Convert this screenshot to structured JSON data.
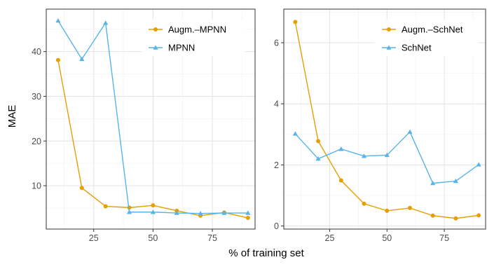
{
  "figure": {
    "ylabel": "MAE",
    "xlabel": "% of training set"
  },
  "chart_data": [
    {
      "type": "line",
      "panel": "left",
      "x": [
        10,
        20,
        30,
        40,
        50,
        60,
        70,
        80,
        90
      ],
      "xlim": [
        5,
        93
      ],
      "ylim": [
        0.3,
        49.5
      ],
      "x_ticks": [
        25,
        50,
        75
      ],
      "y_ticks": [
        10,
        20,
        30,
        40
      ],
      "grid": true,
      "legend_position": "top-right",
      "series": [
        {
          "name": "Augm.–MPNN",
          "color": "#E69F00",
          "marker": "circle",
          "values": [
            38.1,
            9.5,
            5.4,
            5.1,
            5.6,
            4.4,
            3.3,
            4.0,
            2.8
          ]
        },
        {
          "name": "MPNN",
          "color": "#56B4E9",
          "marker": "triangle",
          "values": [
            46.9,
            38.3,
            46.4,
            4.1,
            4.1,
            3.9,
            3.8,
            3.9,
            3.9
          ]
        }
      ]
    },
    {
      "type": "line",
      "panel": "right",
      "x": [
        10,
        20,
        30,
        40,
        50,
        60,
        70,
        80,
        90
      ],
      "xlim": [
        5,
        93
      ],
      "ylim": [
        -0.1,
        7.1
      ],
      "x_ticks": [
        25,
        50,
        75
      ],
      "y_ticks": [
        0,
        2,
        4,
        6
      ],
      "grid": true,
      "legend_position": "top-right",
      "series": [
        {
          "name": "Augm.–SchNet",
          "color": "#E69F00",
          "marker": "circle",
          "values": [
            6.68,
            2.78,
            1.49,
            0.73,
            0.5,
            0.59,
            0.34,
            0.25,
            0.35
          ]
        },
        {
          "name": "SchNet",
          "color": "#56B4E9",
          "marker": "triangle",
          "values": [
            3.02,
            2.2,
            2.52,
            2.29,
            2.32,
            3.08,
            1.4,
            1.47,
            2.01
          ]
        }
      ]
    }
  ]
}
